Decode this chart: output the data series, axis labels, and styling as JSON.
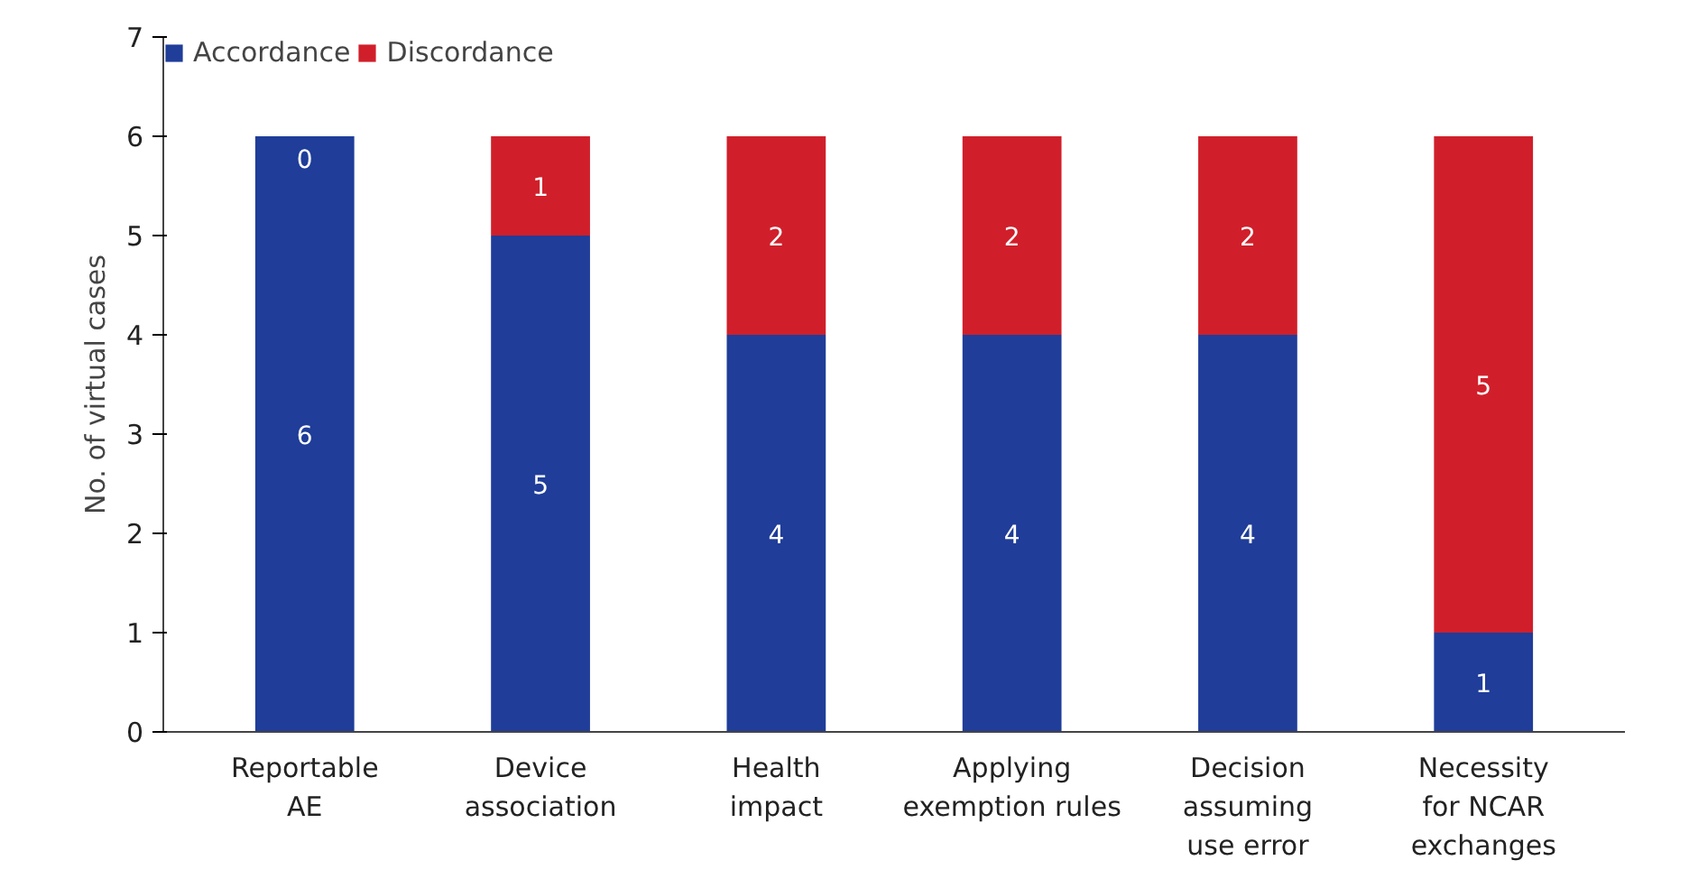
{
  "chart_data": {
    "type": "bar",
    "stacked": true,
    "ylabel": "No. of virtual cases",
    "categories": [
      "Reportable\nAE",
      "Device\nassociation",
      "Health\nimpact",
      "Applying\nexemption rules",
      "Decision\nassuming\nuse error",
      "Necessity\nfor NCAR\nexchanges"
    ],
    "series": [
      {
        "name": "Accordance",
        "color": "#1f3d99",
        "values": [
          6,
          5,
          4,
          4,
          4,
          1
        ]
      },
      {
        "name": "Discordance",
        "color": "#d01f2a",
        "values": [
          0,
          1,
          2,
          2,
          2,
          5
        ]
      }
    ],
    "ylim": [
      0,
      7
    ],
    "yticks": [
      0,
      1,
      2,
      3,
      4,
      5,
      6,
      7
    ],
    "grid": false,
    "legend": "top left",
    "data_labels": true
  }
}
